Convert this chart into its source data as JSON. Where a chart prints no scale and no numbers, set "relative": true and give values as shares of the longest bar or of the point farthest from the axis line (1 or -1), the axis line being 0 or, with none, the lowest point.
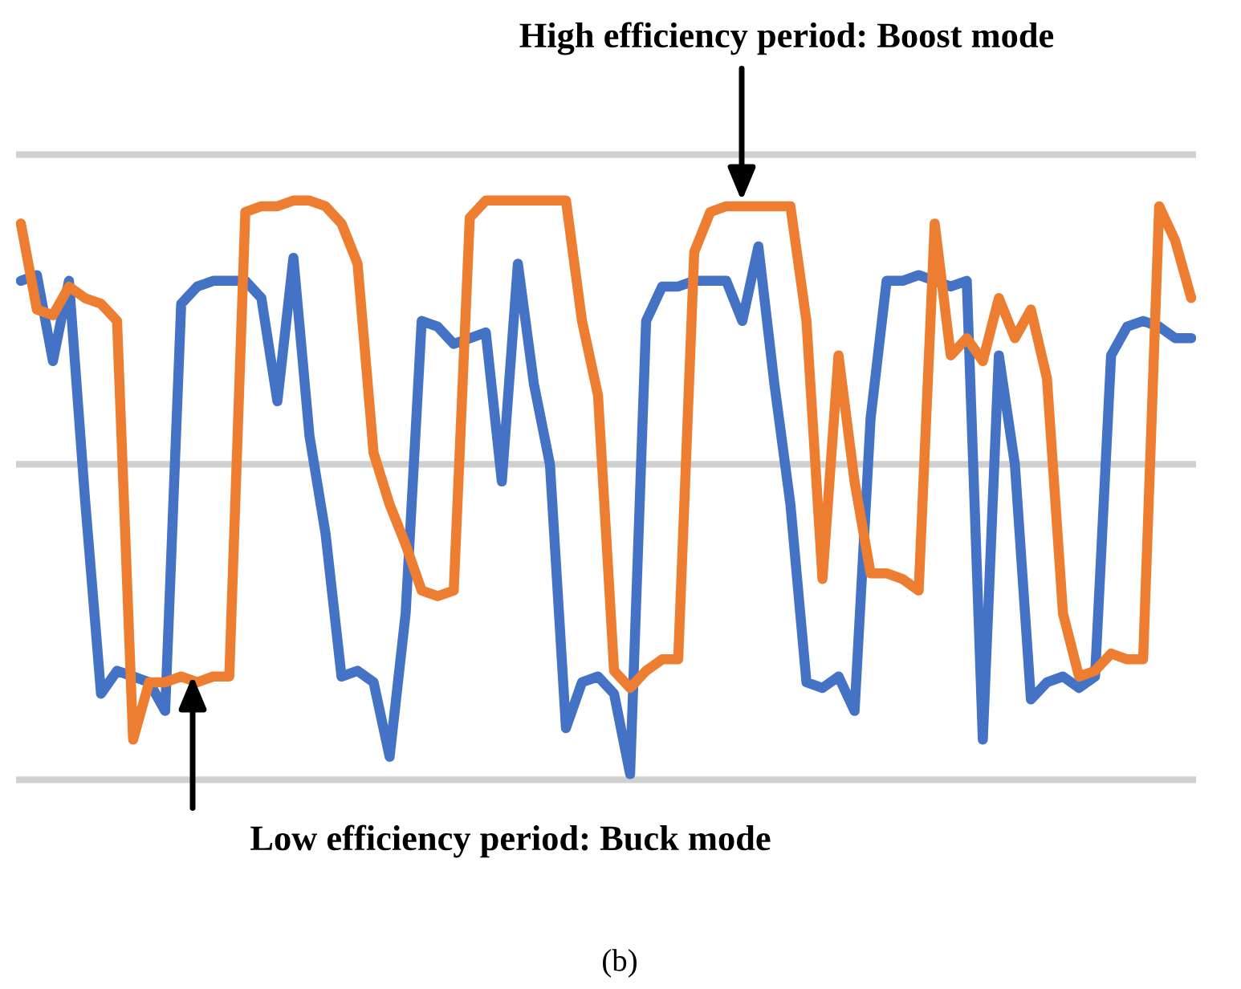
{
  "chart_data": {
    "type": "line",
    "relative": true,
    "ref_lines": [
      {
        "axis": "y",
        "value": 1.08,
        "color": "#d0d0d0"
      },
      {
        "axis": "y",
        "value": 0.54,
        "color": "#d0d0d0"
      },
      {
        "axis": "y",
        "value": -0.01,
        "color": "#d0d0d0"
      }
    ],
    "categories": [
      null,
      null,
      null,
      null,
      null,
      null,
      null,
      null,
      null,
      null,
      null,
      null,
      null,
      null,
      null,
      null,
      null,
      null,
      null,
      null,
      null,
      null,
      null,
      null,
      null,
      null,
      null,
      null,
      null,
      null,
      null,
      null,
      null,
      null,
      null,
      null,
      null,
      null,
      null,
      null,
      null,
      null,
      null,
      null,
      null,
      null,
      null,
      null,
      null,
      null,
      null,
      null,
      null,
      null,
      null,
      null,
      null,
      null,
      null,
      null,
      null,
      null,
      null,
      null,
      null,
      null,
      null,
      null,
      null,
      null,
      null,
      null,
      null,
      null
    ],
    "series": [
      {
        "color": "#4472c4",
        "values": [
          0.86,
          0.87,
          0.72,
          0.86,
          0.48,
          0.14,
          0.18,
          0.17,
          0.16,
          0.11,
          0.82,
          0.85,
          0.86,
          0.86,
          0.86,
          0.83,
          0.65,
          0.9,
          0.59,
          0.42,
          0.17,
          0.18,
          0.16,
          0.03,
          0.28,
          0.79,
          0.78,
          0.75,
          0.76,
          0.77,
          0.51,
          0.89,
          0.68,
          0.54,
          0.08,
          0.16,
          0.17,
          0.14,
          0,
          0.79,
          0.85,
          0.85,
          0.86,
          0.86,
          0.86,
          0.79,
          0.92,
          0.68,
          0.47,
          0.16,
          0.15,
          0.17,
          0.11,
          0.62,
          0.86,
          0.86,
          0.87,
          0.86,
          0.85,
          0.86,
          0.06,
          0.73,
          0.54,
          0.13,
          0.16,
          0.17,
          0.15,
          0.17,
          0.73,
          0.78,
          0.79,
          0.78,
          0.76,
          0.76
        ]
      },
      {
        "color": "#ed7d31",
        "values": [
          0.96,
          0.81,
          0.8,
          0.85,
          0.83,
          0.82,
          0.79,
          0.06,
          0.16,
          0.16,
          0.17,
          0.16,
          0.17,
          0.17,
          0.98,
          0.99,
          0.99,
          1.0,
          1.0,
          0.99,
          0.96,
          0.89,
          0.56,
          0.47,
          0.4,
          0.32,
          0.31,
          0.32,
          0.97,
          1.0,
          1.0,
          1,
          1,
          1,
          1.0,
          0.79,
          0.66,
          0.18,
          0.15,
          0.18,
          0.2,
          0.2,
          0.91,
          0.98,
          0.99,
          0.99,
          0.99,
          0.99,
          0.99,
          0.79,
          0.34,
          0.73,
          0.51,
          0.35,
          0.35,
          0.34,
          0.32,
          0.96,
          0.73,
          0.76,
          0.72,
          0.83,
          0.76,
          0.81,
          0.69,
          0.28,
          0.17,
          0.18,
          0.21,
          0.2,
          0.2,
          0.99,
          0.93,
          0.83
        ]
      }
    ],
    "annotations": [
      "High efficiency period: Boost mode",
      "Low efficiency period: Buck mode",
      "(b)"
    ]
  }
}
